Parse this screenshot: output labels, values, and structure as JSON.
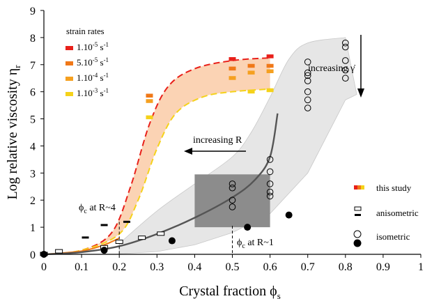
{
  "chart_data": {
    "type": "scatter",
    "title": "",
    "xlabel": "Crystal fraction ϕ",
    "xlabel_sub": "s",
    "ylabel": "Log relative viscosity η",
    "ylabel_sub": "r",
    "xlim": [
      0,
      1
    ],
    "ylim": [
      0,
      9
    ],
    "x_ticks": [
      0,
      0.1,
      0.2,
      0.3,
      0.4,
      0.5,
      0.6,
      0.7,
      0.8,
      0.9,
      1
    ],
    "x_tick_labels": [
      "0",
      "0.1",
      "0.2",
      "0.3",
      "0.4",
      "0.5",
      "0.6",
      "0.7",
      "0.8",
      "0.9",
      "1"
    ],
    "y_ticks": [
      0,
      1,
      2,
      3,
      4,
      5,
      6,
      7,
      8,
      9
    ],
    "y_tick_labels": [
      "0",
      "1",
      "2",
      "3",
      "4",
      "5",
      "6",
      "7",
      "8",
      "9"
    ],
    "grid": false,
    "colors": {
      "rate_1e-5": "#e8201a",
      "rate_5e-5": "#f07818",
      "rate_1e-4": "#f5a020",
      "rate_1e-3": "#f5d21a",
      "band_fill": "#fbd3b4",
      "gray_band": "#e6e6e6",
      "gray_rect": "#8c8c8c",
      "trend_line": "#555555"
    },
    "legend_strain": {
      "title": "strain rates",
      "placement": "top-left",
      "entries": [
        {
          "mantissa": "1.10",
          "exp": "-5",
          "unit": " s",
          "unit_exp": "-1",
          "color": "#e8201a"
        },
        {
          "mantissa": "5.10",
          "exp": "-5",
          "unit": " s",
          "unit_exp": "-1",
          "color": "#f07818"
        },
        {
          "mantissa": "1.10",
          "exp": "-4",
          "unit": " s",
          "unit_exp": "-1",
          "color": "#f5a020"
        },
        {
          "mantissa": "1.10",
          "exp": "-3",
          "unit": " s",
          "unit_exp": "-1",
          "color": "#f5d21a"
        }
      ]
    },
    "legend_type": {
      "placement": "bottom-right",
      "entries": [
        {
          "label": "this study",
          "marker": "gradient-dash"
        },
        {
          "label": "anisometric",
          "marker": "square-pair"
        },
        {
          "label": "isometric",
          "marker": "circle-pair"
        }
      ]
    },
    "annotations": {
      "increasing_R": "increasing R",
      "increasing_rate": "increasing γ̇",
      "phic_R4": "ϕ",
      "phic_R4_sub": "c",
      "phic_R4_rest": " at R~4",
      "phic_R1": "ϕ",
      "phic_R1_sub": "c",
      "phic_R1_rest": " at R~1"
    },
    "this_study_dashes": [
      {
        "x": 0.5,
        "y": 7.2,
        "rate": "1e-5"
      },
      {
        "x": 0.6,
        "y": 7.3,
        "rate": "1e-5"
      },
      {
        "x": 0.5,
        "y": 6.85,
        "rate": "5e-5"
      },
      {
        "x": 0.55,
        "y": 6.95,
        "rate": "5e-5"
      },
      {
        "x": 0.6,
        "y": 6.95,
        "rate": "5e-5"
      },
      {
        "x": 0.28,
        "y": 5.85,
        "rate": "5e-5"
      },
      {
        "x": 0.28,
        "y": 5.65,
        "rate": "1e-4"
      },
      {
        "x": 0.5,
        "y": 6.5,
        "rate": "1e-4"
      },
      {
        "x": 0.55,
        "y": 6.7,
        "rate": "1e-4"
      },
      {
        "x": 0.6,
        "y": 6.75,
        "rate": "1e-4"
      },
      {
        "x": 0.28,
        "y": 5.05,
        "rate": "1e-3"
      },
      {
        "x": 0.55,
        "y": 6.0,
        "rate": "1e-3"
      },
      {
        "x": 0.6,
        "y": 6.05,
        "rate": "1e-3"
      }
    ],
    "rate_curves": [
      {
        "rate": "1e-5",
        "points": [
          [
            0,
            0
          ],
          [
            0.1,
            0.15
          ],
          [
            0.18,
            0.8
          ],
          [
            0.23,
            2.5
          ],
          [
            0.28,
            4.8
          ],
          [
            0.33,
            6.2
          ],
          [
            0.4,
            6.85
          ],
          [
            0.5,
            7.15
          ],
          [
            0.6,
            7.25
          ]
        ]
      },
      {
        "rate": "1e-3",
        "points": [
          [
            0,
            0
          ],
          [
            0.1,
            0.15
          ],
          [
            0.2,
            0.75
          ],
          [
            0.25,
            2.0
          ],
          [
            0.3,
            3.9
          ],
          [
            0.35,
            5.2
          ],
          [
            0.42,
            5.8
          ],
          [
            0.5,
            6.0
          ],
          [
            0.6,
            6.1
          ]
        ]
      }
    ],
    "orange_curve": {
      "points": [
        [
          0,
          0
        ],
        [
          0.1,
          0.12
        ],
        [
          0.16,
          0.35
        ],
        [
          0.2,
          0.6
        ]
      ]
    },
    "anisometric_open": [
      [
        0,
        0
      ],
      [
        0.04,
        0.1
      ],
      [
        0.16,
        0.25
      ],
      [
        0.2,
        0.45
      ],
      [
        0.26,
        0.6
      ],
      [
        0.31,
        0.75
      ]
    ],
    "anisometric_filled": [
      [
        0,
        0.05
      ],
      [
        0.11,
        0.62
      ],
      [
        0.16,
        1.08
      ],
      [
        0.22,
        1.2
      ]
    ],
    "isometric_open": [
      [
        0.5,
        2.6
      ],
      [
        0.5,
        2.45
      ],
      [
        0.5,
        2.0
      ],
      [
        0.5,
        1.75
      ],
      [
        0.6,
        3.5
      ],
      [
        0.6,
        3.05
      ],
      [
        0.6,
        2.6
      ],
      [
        0.6,
        2.3
      ],
      [
        0.6,
        2.15
      ],
      [
        0.7,
        7.1
      ],
      [
        0.7,
        6.7
      ],
      [
        0.7,
        6.6
      ],
      [
        0.7,
        6.4
      ],
      [
        0.7,
        6.0
      ],
      [
        0.7,
        5.7
      ],
      [
        0.7,
        5.4
      ],
      [
        0.8,
        7.8
      ],
      [
        0.8,
        7.65
      ],
      [
        0.8,
        7.15
      ],
      [
        0.8,
        6.8
      ],
      [
        0.8,
        6.5
      ]
    ],
    "isometric_filled": [
      [
        0,
        0
      ],
      [
        0.16,
        0.15
      ],
      [
        0.34,
        0.5
      ],
      [
        0.54,
        1.0
      ],
      [
        0.65,
        1.45
      ]
    ],
    "trend_curve": {
      "points": [
        [
          0,
          0
        ],
        [
          0.1,
          0.08
        ],
        [
          0.2,
          0.3
        ],
        [
          0.3,
          0.75
        ],
        [
          0.4,
          1.35
        ],
        [
          0.5,
          2.1
        ],
        [
          0.56,
          2.75
        ],
        [
          0.6,
          3.6
        ],
        [
          0.62,
          5.2
        ]
      ]
    },
    "gray_band": {
      "upper": [
        [
          0.2,
          0.4
        ],
        [
          0.3,
          1.6
        ],
        [
          0.4,
          2.6
        ],
        [
          0.5,
          3.6
        ],
        [
          0.55,
          4.5
        ],
        [
          0.6,
          5.8
        ],
        [
          0.65,
          7.2
        ],
        [
          0.7,
          7.8
        ],
        [
          0.8,
          8.0
        ]
      ],
      "lower": [
        [
          0.83,
          5.9
        ],
        [
          0.8,
          5.7
        ],
        [
          0.7,
          3.0
        ],
        [
          0.6,
          1.5
        ],
        [
          0.5,
          0.8
        ],
        [
          0.4,
          0.35
        ],
        [
          0.3,
          0.1
        ],
        [
          0.2,
          0.02
        ]
      ]
    },
    "gray_rect": {
      "x0": 0.4,
      "x1": 0.6,
      "y0": 1.0,
      "y1": 2.95
    }
  }
}
